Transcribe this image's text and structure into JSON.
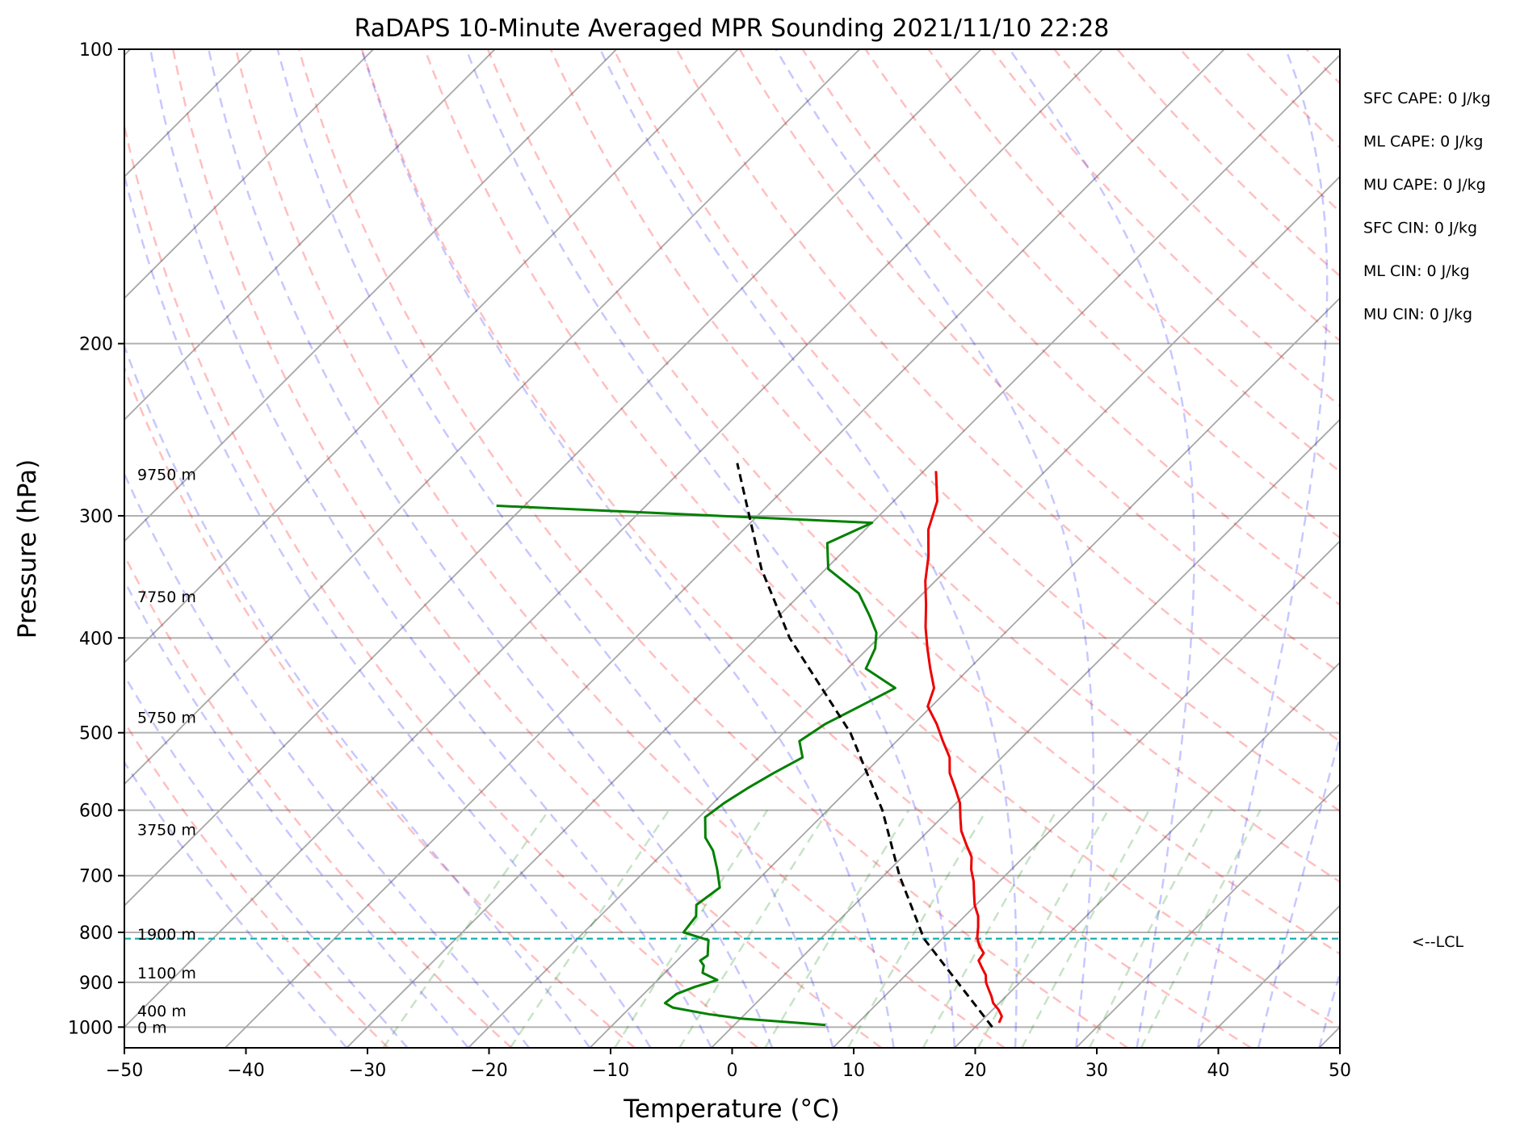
{
  "chart_data": {
    "type": "skew-t",
    "title": "RaDAPS 10-Minute Averaged MPR Sounding 2021/11/10 22:28",
    "xlabel": "Temperature (°C)",
    "ylabel": "Pressure (hPa)",
    "xlim": [
      -50,
      50
    ],
    "ylim": [
      1050,
      100
    ],
    "y_scale": "log",
    "grid": true,
    "x_ticks": [
      "−50",
      "−40",
      "−30",
      "−20",
      "−10",
      "0",
      "10",
      "20",
      "30",
      "40",
      "50"
    ],
    "y_ticks": [
      "100",
      "200",
      "300",
      "400",
      "500",
      "600",
      "700",
      "800",
      "900",
      "1000"
    ],
    "height_labels": [
      {
        "label": "9750 m",
        "p": 272
      },
      {
        "label": "7750 m",
        "p": 363
      },
      {
        "label": "5750 m",
        "p": 482
      },
      {
        "label": "3750 m",
        "p": 628
      },
      {
        "label": "1900 m",
        "p": 803
      },
      {
        "label": "1100 m",
        "p": 880
      },
      {
        "label": "400 m",
        "p": 962
      },
      {
        "label": "0 m",
        "p": 1000
      }
    ],
    "stats": [
      "SFC CAPE: 0 J/kg",
      "ML CAPE: 0 J/kg",
      "MU CAPE: 0 J/kg",
      "SFC CIN: 0 J/kg",
      "ML CIN: 0 J/kg",
      "MU CIN: 0 J/kg"
    ],
    "lcl": {
      "label": "<--LCL",
      "p": 812
    },
    "series": [
      {
        "color": "#ee0000",
        "p": [
          990,
          975,
          960,
          945,
          930,
          915,
          900,
          885,
          870,
          855,
          840,
          825,
          810,
          790,
          770,
          750,
          730,
          710,
          690,
          670,
          650,
          630,
          610,
          590,
          570,
          550,
          530,
          510,
          490,
          470,
          450,
          430,
          410,
          390,
          370,
          350,
          330,
          310,
          290,
          270
        ],
        "t": [
          21.6,
          21.3,
          20.5,
          19.5,
          18.8,
          18.0,
          17.2,
          16.6,
          15.7,
          14.8,
          14.6,
          13.6,
          12.8,
          12.0,
          11.1,
          9.9,
          8.9,
          7.9,
          6.7,
          5.7,
          4.2,
          2.7,
          1.5,
          0.3,
          -1.3,
          -3.0,
          -4.3,
          -6.2,
          -8.1,
          -10.3,
          -11.3,
          -13.2,
          -15.1,
          -17.0,
          -18.8,
          -20.8,
          -22.6,
          -24.8,
          -26.4,
          -29.0
        ]
      },
      {
        "color": "#008000",
        "p": [
          995,
          990,
          980,
          970,
          955,
          945,
          925,
          910,
          895,
          880,
          865,
          855,
          845,
          830,
          815,
          800,
          770,
          750,
          720,
          690,
          660,
          640,
          610,
          590,
          570,
          550,
          530,
          510,
          490,
          470,
          450,
          430,
          410,
          395,
          380,
          360,
          340,
          320,
          305,
          293
        ],
        "t": [
          7.5,
          5.0,
          0.0,
          -3.0,
          -6.5,
          -7.5,
          -7.3,
          -6.4,
          -5.1,
          -6.9,
          -7.4,
          -8.1,
          -7.9,
          -8.5,
          -9.1,
          -11.8,
          -12.1,
          -13.0,
          -12.5,
          -14.2,
          -16.1,
          -17.8,
          -19.5,
          -19.1,
          -18.4,
          -17.5,
          -16.4,
          -18.0,
          -17.3,
          -15.9,
          -14.5,
          -18.5,
          -19.4,
          -20.6,
          -22.5,
          -25.3,
          -29.8,
          -32.0,
          -30.0,
          -62.3
        ]
      },
      {
        "color": "#000000",
        "dashed": true,
        "p": [
          1000,
          812,
          700,
          600,
          500,
          400,
          340,
          265
        ],
        "t": [
          21.4,
          8.5,
          1.3,
          -5.5,
          -14.5,
          -27.3,
          -35.3,
          -46.0
        ]
      }
    ]
  }
}
